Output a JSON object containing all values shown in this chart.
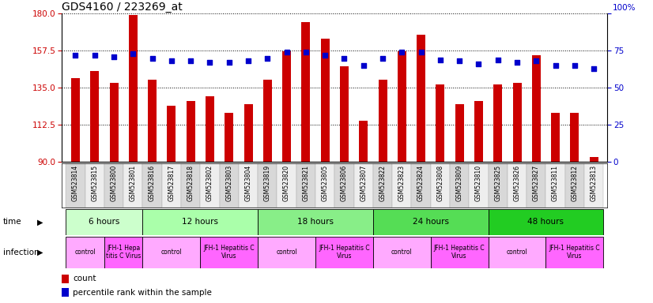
{
  "title": "GDS4160 / 223269_at",
  "samples": [
    "GSM523814",
    "GSM523815",
    "GSM523800",
    "GSM523801",
    "GSM523816",
    "GSM523817",
    "GSM523818",
    "GSM523802",
    "GSM523803",
    "GSM523804",
    "GSM523819",
    "GSM523820",
    "GSM523821",
    "GSM523805",
    "GSM523806",
    "GSM523807",
    "GSM523822",
    "GSM523823",
    "GSM523824",
    "GSM523808",
    "GSM523809",
    "GSM523810",
    "GSM523825",
    "GSM523826",
    "GSM523827",
    "GSM523811",
    "GSM523812",
    "GSM523813"
  ],
  "counts": [
    141,
    145,
    138,
    179,
    140,
    124,
    127,
    130,
    120,
    125,
    140,
    157,
    175,
    165,
    148,
    115,
    140,
    157,
    167,
    137,
    125,
    127,
    137,
    138,
    155,
    120,
    120,
    93
  ],
  "percentile": [
    72,
    72,
    71,
    73,
    70,
    68,
    68,
    67,
    67,
    68,
    70,
    74,
    74,
    72,
    70,
    65,
    70,
    74,
    74,
    69,
    68,
    66,
    69,
    67,
    68,
    65,
    65,
    63
  ],
  "ylim_left": [
    90,
    180
  ],
  "ylim_right": [
    0,
    100
  ],
  "yticks_left": [
    90,
    112.5,
    135,
    157.5,
    180
  ],
  "yticks_right": [
    0,
    25,
    50,
    75,
    100
  ],
  "bar_color": "#cc0000",
  "dot_color": "#0000cc",
  "time_groups": [
    {
      "label": "6 hours",
      "start": 0,
      "end": 4,
      "color": "#ccffcc"
    },
    {
      "label": "12 hours",
      "start": 4,
      "end": 10,
      "color": "#aaffaa"
    },
    {
      "label": "18 hours",
      "start": 10,
      "end": 16,
      "color": "#88ee88"
    },
    {
      "label": "24 hours",
      "start": 16,
      "end": 22,
      "color": "#55dd55"
    },
    {
      "label": "48 hours",
      "start": 22,
      "end": 28,
      "color": "#22cc22"
    }
  ],
  "infection_groups": [
    {
      "label": "control",
      "start": 0,
      "end": 2,
      "color": "#ffaaff"
    },
    {
      "label": "JFH-1 Hepa\ntitis C Virus",
      "start": 2,
      "end": 4,
      "color": "#ff66ff"
    },
    {
      "label": "control",
      "start": 4,
      "end": 7,
      "color": "#ffaaff"
    },
    {
      "label": "JFH-1 Hepatitis C\nVirus",
      "start": 7,
      "end": 10,
      "color": "#ff66ff"
    },
    {
      "label": "control",
      "start": 10,
      "end": 13,
      "color": "#ffaaff"
    },
    {
      "label": "JFH-1 Hepatitis C\nVirus",
      "start": 13,
      "end": 16,
      "color": "#ff66ff"
    },
    {
      "label": "control",
      "start": 16,
      "end": 19,
      "color": "#ffaaff"
    },
    {
      "label": "JFH-1 Hepatitis C\nVirus",
      "start": 19,
      "end": 22,
      "color": "#ff66ff"
    },
    {
      "label": "control",
      "start": 22,
      "end": 25,
      "color": "#ffaaff"
    },
    {
      "label": "JFH-1 Hepatitis C\nVirus",
      "start": 25,
      "end": 28,
      "color": "#ff66ff"
    }
  ],
  "axis_color_left": "#cc0000",
  "axis_color_right": "#0000cc",
  "bar_width": 0.45,
  "col_bg_odd": "#d8d8d8",
  "col_bg_even": "#eeeeee"
}
